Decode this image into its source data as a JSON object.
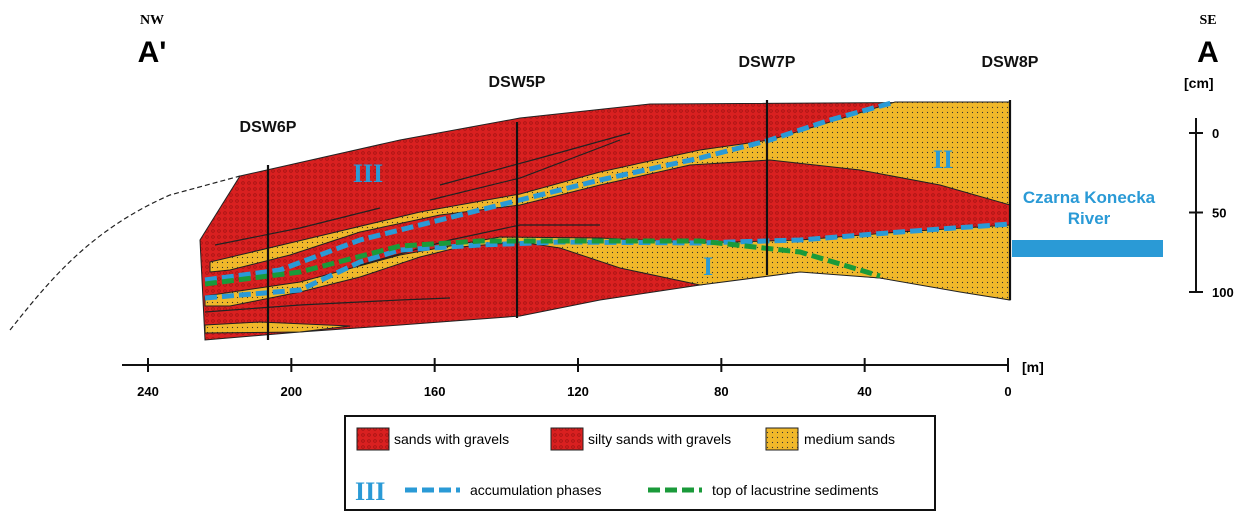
{
  "header": {
    "left_direction": "NW",
    "left_point": "A'",
    "right_direction": "SE",
    "right_point": "A"
  },
  "boreholes": [
    "DSW6P",
    "DSW5P",
    "DSW7P",
    "DSW8P"
  ],
  "phases": [
    "III",
    "II",
    "I"
  ],
  "river": "Czarna Konecka River",
  "x_axis": {
    "unit": "[m]",
    "ticks": [
      240,
      200,
      160,
      120,
      80,
      40,
      0
    ]
  },
  "depth_axis": {
    "unit": "[cm]",
    "ticks": [
      0,
      50,
      100
    ]
  },
  "legend": {
    "sands": "sands with gravels",
    "silty": "silty sands with gravels",
    "medium": "medium sands",
    "phase_symbol": "III",
    "accumulation": "accumulation phases",
    "lacustrine": "top of lacustrine sediments"
  }
}
